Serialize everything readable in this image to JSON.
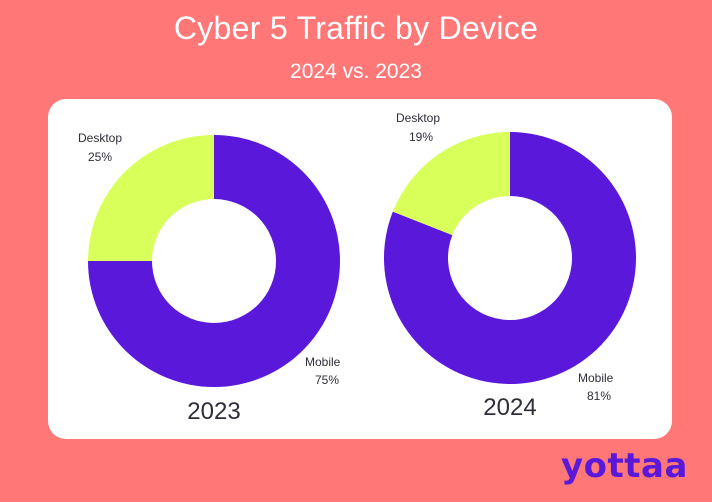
{
  "chart_data": [
    {
      "type": "pie",
      "title": "Cyber 5 Traffic by Device",
      "subtitle": "2024 vs. 2023",
      "caption": "2023",
      "categories": [
        "Mobile",
        "Desktop"
      ],
      "values": [
        75,
        25
      ],
      "value_labels": [
        "75%",
        "25%"
      ],
      "colors": [
        "#5A18DB",
        "#D8FF5A"
      ]
    },
    {
      "type": "pie",
      "caption": "2024",
      "categories": [
        "Mobile",
        "Desktop"
      ],
      "values": [
        81,
        19
      ],
      "value_labels": [
        "81%",
        "19%"
      ],
      "colors": [
        "#5A18DB",
        "#D8FF5A"
      ]
    }
  ],
  "brand": {
    "logo_text": "yottaa",
    "logo_color": "#5A18DB",
    "background": "#FF7777"
  }
}
